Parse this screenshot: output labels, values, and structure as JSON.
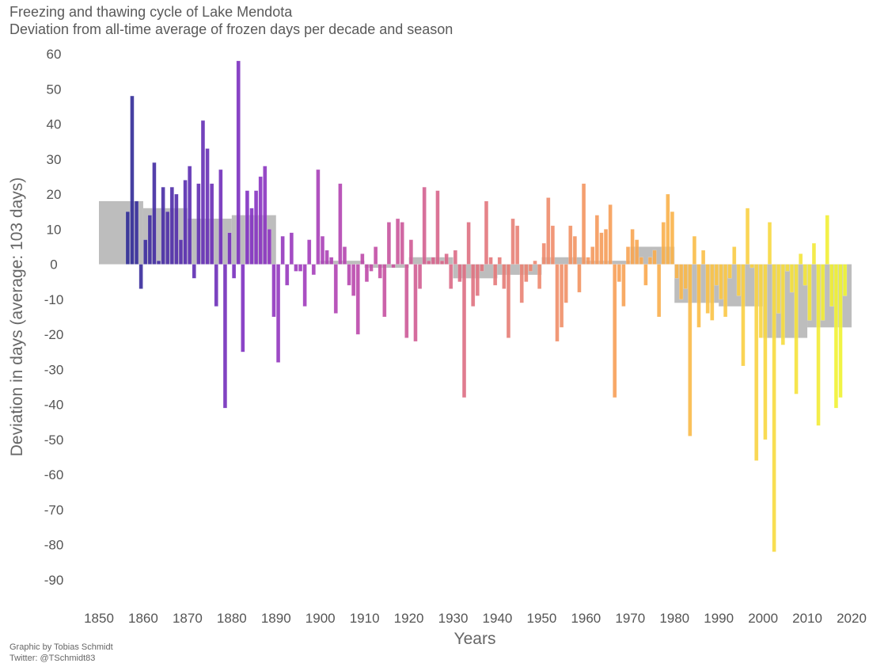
{
  "chart_data": {
    "type": "bar",
    "title": "Freezing and thawing cycle of Lake Mendota",
    "subtitle": "Deviation from all-time average of frozen days per decade and season",
    "xlabel": "Years",
    "ylabel": "Deviation in days (average: 103 days)",
    "xlim": [
      1850,
      2020
    ],
    "ylim": [
      -90,
      60
    ],
    "x_ticks": [
      "1850",
      "1860",
      "1870",
      "1880",
      "1890",
      "1900",
      "1910",
      "1920",
      "1930",
      "1940",
      "1950",
      "1960",
      "1970",
      "1980",
      "1990",
      "2000",
      "2010",
      "2020"
    ],
    "y_ticks": [
      "60",
      "50",
      "40",
      "30",
      "20",
      "10",
      "0",
      "-10",
      "-20",
      "-30",
      "-40",
      "-50",
      "-60",
      "-70",
      "-80",
      "-90"
    ],
    "grid": false,
    "colormap": "plasma",
    "colors": {
      "start": "#2f2b96",
      "end": "#f0f530",
      "decade_band": "#bdbdbd"
    },
    "season_series": {
      "start_year": 1856,
      "values": [
        15,
        48,
        18,
        -7,
        7,
        14,
        29,
        1,
        22,
        15,
        22,
        20,
        7,
        24,
        28,
        -4,
        23,
        41,
        33,
        23,
        -12,
        27,
        -41,
        9,
        -4,
        58,
        -25,
        21,
        16,
        21,
        25,
        28,
        10,
        -15,
        -28,
        8,
        -6,
        9,
        -2,
        -2,
        -12,
        7,
        -3,
        27,
        8,
        4,
        2,
        -14,
        23,
        5,
        -6,
        -9,
        -20,
        3,
        -5,
        -2,
        5,
        -4,
        -15,
        12,
        -1,
        13,
        12,
        -21,
        7,
        -22,
        -7,
        22,
        1,
        2,
        21,
        1,
        3,
        -7,
        4,
        -5,
        -38,
        12,
        -12,
        -9,
        -2,
        18,
        2,
        -6,
        2,
        -7,
        -21,
        13,
        11,
        -11,
        -5,
        -2,
        1,
        -7,
        6,
        19,
        11,
        -22,
        -18,
        -11,
        11,
        8,
        -8,
        23,
        2,
        5,
        14,
        9,
        10,
        17,
        -38,
        -5,
        -12,
        5,
        10,
        7,
        2,
        -6,
        2,
        4,
        -15,
        12,
        20,
        15,
        -4,
        -10,
        -7,
        -49,
        8,
        -18,
        4,
        -14,
        -16,
        -6,
        -10,
        -15,
        -4,
        5,
        -9,
        -29,
        16,
        -1,
        -56,
        -21,
        -50,
        12,
        -82,
        -14,
        -23,
        -2,
        -8,
        -37,
        3,
        -6,
        -16,
        6,
        -46,
        -16,
        14,
        -12,
        -41,
        -38,
        -9
      ]
    },
    "decade_series": {
      "decades": [
        1850,
        1860,
        1870,
        1880,
        1890,
        1900,
        1910,
        1920,
        1930,
        1940,
        1950,
        1960,
        1970,
        1980,
        1990,
        2000,
        2010
      ],
      "values": [
        18,
        16,
        13,
        14,
        0,
        1,
        -1,
        2,
        -4,
        -3,
        2,
        1,
        5,
        -11,
        -12,
        -21,
        -18
      ]
    }
  },
  "credits": {
    "line1": "Graphic by Tobias Schmidt",
    "line2": "Twitter: @TSchmidt83"
  }
}
